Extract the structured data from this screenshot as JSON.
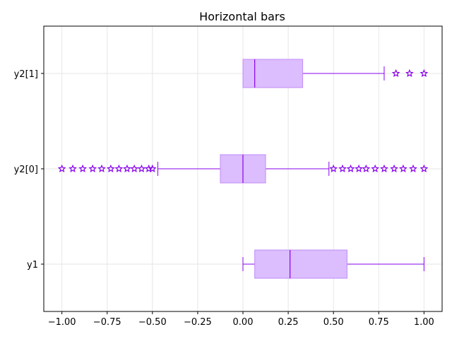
{
  "chart_data": {
    "type": "boxplot",
    "orientation": "horizontal",
    "title": "Horizontal bars",
    "xlabel": "",
    "ylabel": "",
    "xlim": [
      -1.1,
      1.1
    ],
    "xticks": [
      -1.0,
      -0.75,
      -0.5,
      -0.25,
      0.0,
      0.25,
      0.5,
      0.75,
      1.0
    ],
    "xtick_labels": [
      "−1.00",
      "−0.75",
      "−0.50",
      "−0.25",
      "0.00",
      "0.25",
      "0.50",
      "0.75",
      "1.00"
    ],
    "grid": true,
    "colors": {
      "box_fill": "#dcbdfd",
      "box_edge": "#c18cf7",
      "line": "#8800ee",
      "marker": "#8800ee",
      "grid": "#e6e6e6",
      "axis": "#000000"
    },
    "categories": [
      "y2[1]",
      "y2[0]",
      "y1"
    ],
    "boxes": [
      {
        "label": "y2[1]",
        "whisker_low": 0.0,
        "q1": 0.0,
        "median": 0.065,
        "q3": 0.33,
        "whisker_high": 0.78,
        "fliers": [
          0.845,
          0.92,
          1.0
        ]
      },
      {
        "label": "y2[0]",
        "whisker_low": -0.47,
        "q1": -0.125,
        "median": 0.0,
        "q3": 0.125,
        "whisker_high": 0.475,
        "fliers": [
          -1.0,
          -0.94,
          -0.885,
          -0.83,
          -0.78,
          -0.73,
          -0.685,
          -0.64,
          -0.6,
          -0.56,
          -0.52,
          -0.5,
          0.5,
          0.55,
          0.595,
          0.64,
          0.68,
          0.73,
          0.78,
          0.835,
          0.885,
          0.94,
          1.0
        ]
      },
      {
        "label": "y1",
        "whisker_low": 0.0,
        "q1": 0.065,
        "median": 0.26,
        "q3": 0.575,
        "whisker_high": 1.0,
        "fliers": []
      }
    ]
  }
}
